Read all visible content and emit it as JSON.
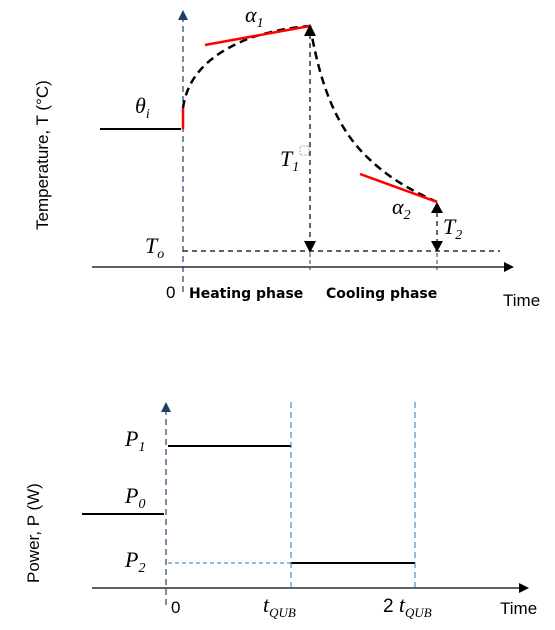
{
  "top_plot": {
    "y_axis_label": "Temperature, T (°C)",
    "x_axis_label": "Time",
    "origin_label": "0",
    "heating_phase_label": "Heating phase",
    "cooling_phase_label": "Cooling phase",
    "theta_i": {
      "symbol": "θ",
      "sub": "i"
    },
    "alpha_1": {
      "symbol": "α",
      "sub": "1"
    },
    "alpha_2": {
      "symbol": "α",
      "sub": "2"
    },
    "T_1": {
      "symbol": "T",
      "sub": "1"
    },
    "T_2": {
      "symbol": "T",
      "sub": "2"
    },
    "T_o": {
      "symbol": "T",
      "sub": "o"
    }
  },
  "bottom_plot": {
    "y_axis_label": "Power, P (W)",
    "x_axis_label": "Time",
    "origin_label": "0",
    "P_1": {
      "symbol": "P",
      "sub": "1"
    },
    "P_0": {
      "symbol": "P",
      "sub": "0"
    },
    "P_2": {
      "symbol": "P",
      "sub": "2"
    },
    "t_qub": {
      "symbol": "t",
      "sub": "QUB"
    },
    "two_t_qub": {
      "prefix": "2 ",
      "symbol": "t",
      "sub": "QUB"
    }
  },
  "colors": {
    "axis": "#000000",
    "curve": "#000000",
    "tangent": "#ff0000",
    "guide": "#2e75b6",
    "dashed_black": "#000000"
  }
}
